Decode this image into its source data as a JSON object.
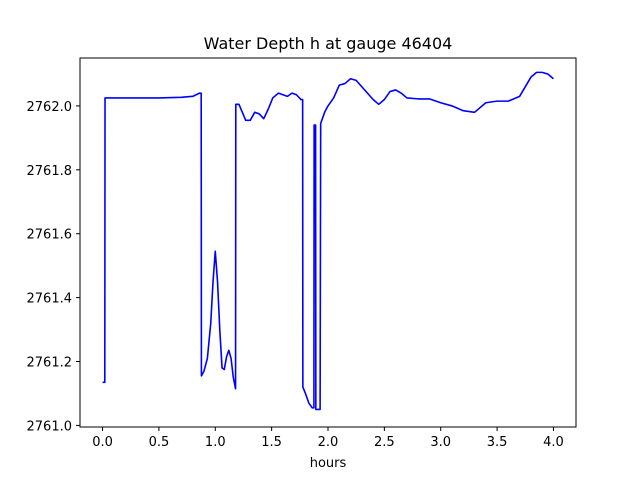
{
  "chart_data": {
    "type": "line",
    "title": "Water Depth h at gauge 46404",
    "xlabel": "hours",
    "ylabel": "",
    "xlim": [
      -0.2,
      4.2
    ],
    "ylim": [
      2760.995,
      2762.15
    ],
    "xticks": [
      0.0,
      0.5,
      1.0,
      1.5,
      2.0,
      2.5,
      3.0,
      3.5,
      4.0
    ],
    "xtick_labels": [
      "0.0",
      "0.5",
      "1.0",
      "1.5",
      "2.0",
      "2.5",
      "3.0",
      "3.5",
      "4.0"
    ],
    "yticks": [
      2761.0,
      2761.2,
      2761.4,
      2761.6,
      2761.8,
      2762.0
    ],
    "ytick_labels": [
      "2761.0",
      "2761.2",
      "2761.4",
      "2761.6",
      "2761.8",
      "2762.0"
    ],
    "grid": false,
    "series": [
      {
        "color": "#0000ff",
        "x": [
          0.0,
          0.02,
          0.022,
          0.1,
          0.3,
          0.5,
          0.7,
          0.8,
          0.86,
          0.875,
          0.877,
          0.9,
          0.93,
          0.96,
          0.98,
          1.0,
          1.02,
          1.04,
          1.06,
          1.08,
          1.1,
          1.12,
          1.14,
          1.16,
          1.18,
          1.182,
          1.21,
          1.24,
          1.27,
          1.31,
          1.35,
          1.39,
          1.43,
          1.47,
          1.51,
          1.56,
          1.6,
          1.64,
          1.68,
          1.72,
          1.76,
          1.775,
          1.777,
          1.8,
          1.83,
          1.86,
          1.875,
          1.877,
          1.89,
          1.892,
          1.9,
          1.9,
          1.93,
          1.935,
          1.95,
          1.97,
          2.0,
          2.05,
          2.1,
          2.15,
          2.2,
          2.25,
          2.3,
          2.4,
          2.45,
          2.5,
          2.55,
          2.6,
          2.65,
          2.7,
          2.8,
          2.9,
          3.0,
          3.1,
          3.2,
          3.3,
          3.4,
          3.5,
          3.6,
          3.7,
          3.8,
          3.85,
          3.9,
          3.95,
          4.0
        ],
        "y": [
          2761.135,
          2761.135,
          2762.025,
          2762.025,
          2762.025,
          2762.025,
          2762.027,
          2762.03,
          2762.04,
          2762.04,
          2761.155,
          2761.17,
          2761.21,
          2761.32,
          2761.45,
          2761.545,
          2761.45,
          2761.3,
          2761.18,
          2761.175,
          2761.215,
          2761.235,
          2761.21,
          2761.15,
          2761.115,
          2762.005,
          2762.005,
          2761.98,
          2761.955,
          2761.955,
          2761.98,
          2761.975,
          2761.96,
          2761.99,
          2762.025,
          2762.04,
          2762.035,
          2762.03,
          2762.04,
          2762.035,
          2762.02,
          2762.02,
          2761.12,
          2761.1,
          2761.07,
          2761.055,
          2761.055,
          2761.94,
          2761.94,
          2761.05,
          2761.05,
          2761.05,
          2761.05,
          2761.945,
          2761.96,
          2761.98,
          2762.0,
          2762.025,
          2762.065,
          2762.07,
          2762.085,
          2762.08,
          2762.06,
          2762.02,
          2762.005,
          2762.02,
          2762.045,
          2762.05,
          2762.04,
          2762.025,
          2762.022,
          2762.022,
          2762.01,
          2762.0,
          2761.985,
          2761.98,
          2762.01,
          2762.015,
          2762.015,
          2762.03,
          2762.09,
          2762.105,
          2762.105,
          2762.1,
          2762.085
        ]
      }
    ]
  }
}
